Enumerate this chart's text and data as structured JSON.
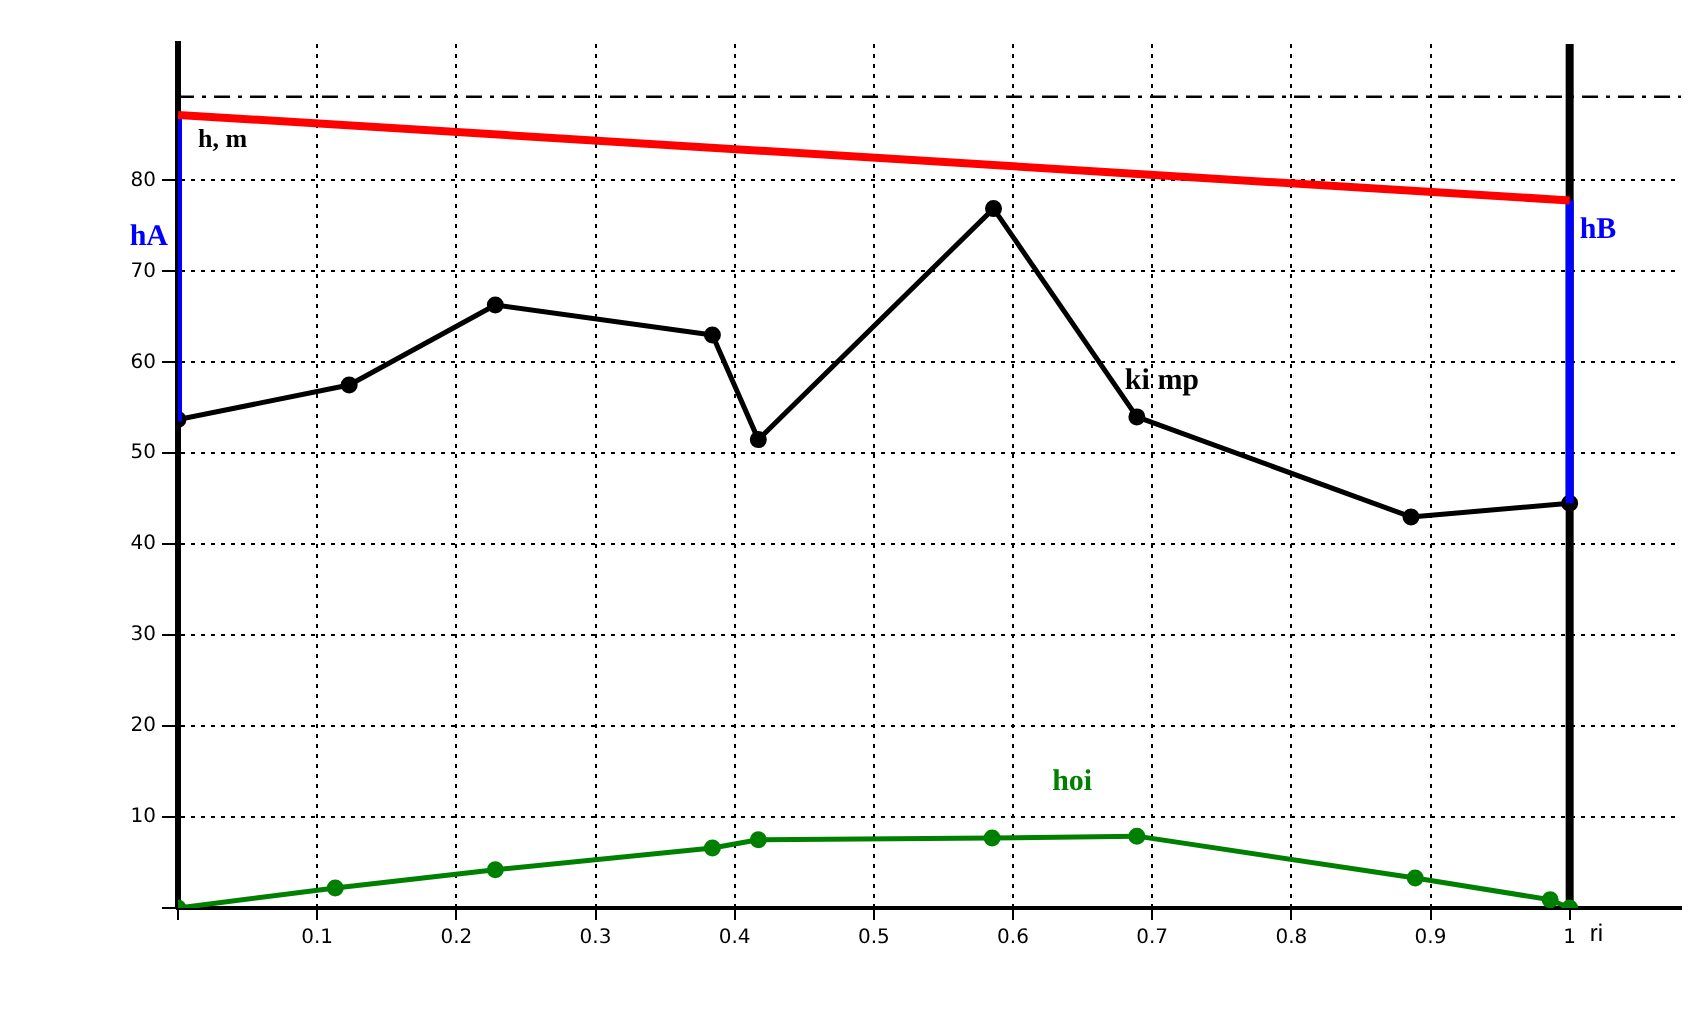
{
  "chart_data": {
    "type": "line",
    "xlabel": "ri",
    "ylabel": "h, m",
    "xlim": [
      0,
      1.08
    ],
    "ylim": [
      0,
      95
    ],
    "xticks": [
      {
        "value": 0,
        "label": null
      },
      0.1,
      0.2,
      0.3,
      0.4,
      0.5,
      0.6,
      0.7,
      0.8,
      0.9,
      1
    ],
    "yticks": [
      {
        "value": 0,
        "label": null
      },
      10,
      20,
      30,
      40,
      50,
      60,
      70,
      80
    ],
    "grid": true,
    "legend": false,
    "ref_lines": [
      {
        "axis": "y",
        "value": 89.2,
        "color": "#000000",
        "line_style": "dashed"
      },
      {
        "axis": "x",
        "value": 1,
        "color": "#000000",
        "line_style": "solid"
      }
    ],
    "series": [
      {
        "color": "#ff0000",
        "x": [
          0,
          1
        ],
        "values": [
          87.2,
          77.8
        ],
        "marker": "none"
      },
      {
        "name": "hA",
        "color": "#0000ff",
        "x": [
          0,
          0
        ],
        "values": [
          53.5,
          87.2
        ],
        "marker": "none"
      },
      {
        "name": "hB",
        "color": "#0000ff",
        "x": [
          1,
          1
        ],
        "values": [
          44.5,
          77.8
        ],
        "marker": "none"
      },
      {
        "name": "ki mp",
        "color": "#000000",
        "x": [
          0,
          0.123,
          0.228,
          0.384,
          0.417,
          0.586,
          0.689,
          0.886,
          1
        ],
        "values": [
          53.7,
          57.5,
          66.3,
          63.0,
          51.5,
          76.9,
          54.0,
          43.0,
          44.5
        ],
        "marker": "circle"
      },
      {
        "name": "hoi",
        "color": "#008000",
        "x": [
          0,
          0.113,
          0.228,
          0.384,
          0.417,
          0.585,
          0.689,
          0.889,
          0.986,
          1
        ],
        "values": [
          0,
          2.2,
          4.2,
          6.6,
          7.5,
          7.7,
          7.9,
          3.3,
          0.9,
          0
        ],
        "marker": "circle"
      }
    ]
  }
}
